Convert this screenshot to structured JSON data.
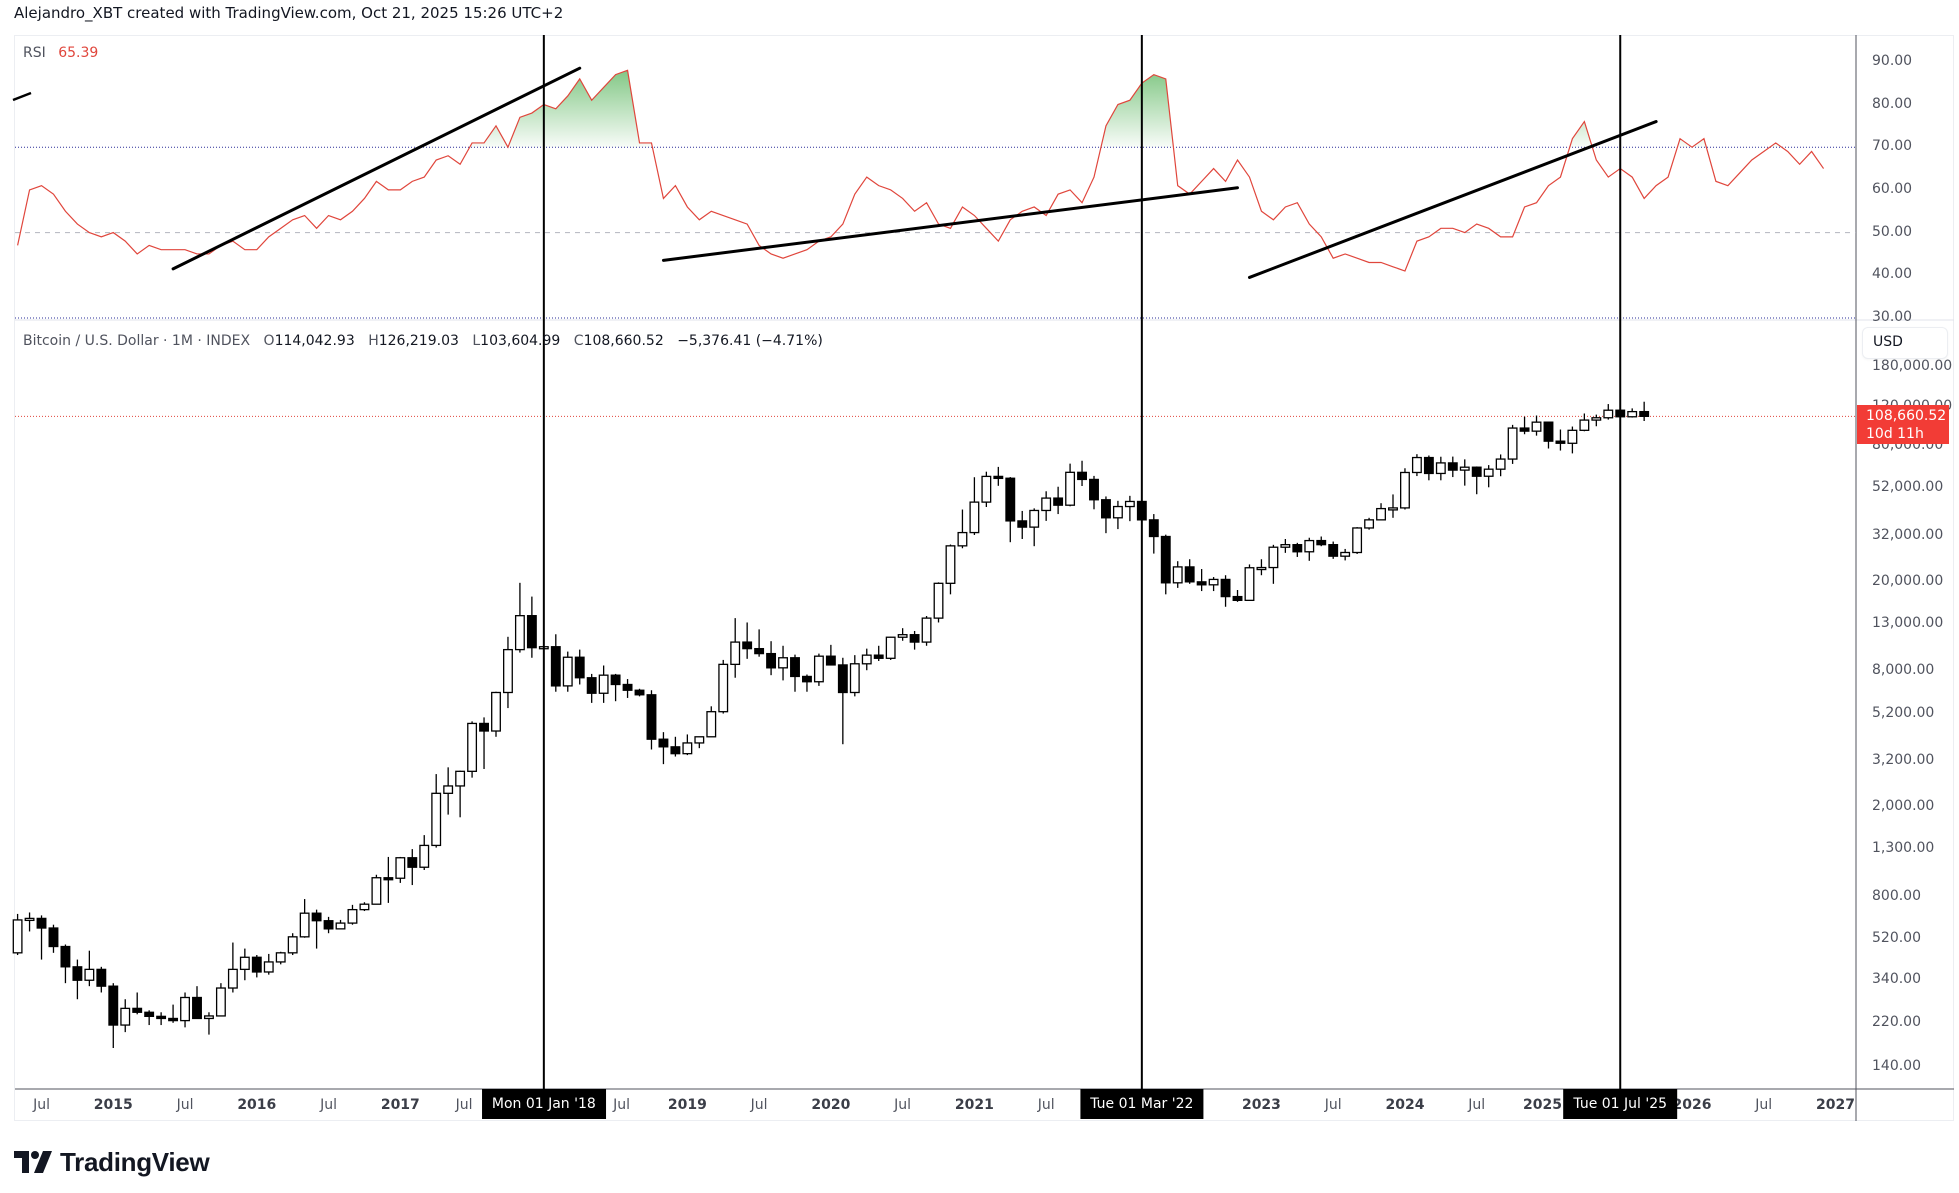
{
  "header": {
    "title": "Alejandro_XBT created with TradingView.com, Oct 21, 2025 15:26 UTC+2"
  },
  "rsi_legend": {
    "name": "RSI",
    "value": "65.39",
    "value_color": "#e0463c"
  },
  "price_legend": {
    "symbol": "Bitcoin / U.S. Dollar · 1M · INDEX",
    "open_label": "O",
    "open": "114,042.93",
    "high_label": "H",
    "high": "126,219.03",
    "low_label": "L",
    "low": "103,604.99",
    "close_label": "C",
    "close": "108,660.52",
    "change": "−5,376.41 (−4.71%)"
  },
  "currency_button": "USD",
  "last_price_tag": {
    "price": "108,660.52",
    "countdown": "10d 11h",
    "color": "#f23c36"
  },
  "rsi_axis": [
    "90.00",
    "80.00",
    "70.00",
    "60.00",
    "50.00",
    "40.00",
    "30.00"
  ],
  "price_axis": [
    "180,000.00",
    "120,000.00",
    "80,000.00",
    "52,000.00",
    "32,000.00",
    "20,000.00",
    "13,000.00",
    "8,000.00",
    "5,200.00",
    "3,200.00",
    "2,000.00",
    "1,300.00",
    "800.00",
    "520.00",
    "340.00",
    "220.00",
    "140.00"
  ],
  "time_axis": [
    {
      "label": "Jul",
      "year": false
    },
    {
      "label": "2015",
      "year": true
    },
    {
      "label": "Jul",
      "year": false
    },
    {
      "label": "2016",
      "year": true
    },
    {
      "label": "Jul",
      "year": false
    },
    {
      "label": "2017",
      "year": true
    },
    {
      "label": "Jul",
      "year": false
    },
    {
      "label": "Jul",
      "year": false
    },
    {
      "label": "2019",
      "year": true
    },
    {
      "label": "Jul",
      "year": false
    },
    {
      "label": "2020",
      "year": true
    },
    {
      "label": "Jul",
      "year": false
    },
    {
      "label": "2021",
      "year": true
    },
    {
      "label": "Jul",
      "year": false
    },
    {
      "label": "2023",
      "year": true
    },
    {
      "label": "Jul",
      "year": false
    },
    {
      "label": "2024",
      "year": true
    },
    {
      "label": "Jul",
      "year": false
    },
    {
      "label": "2025",
      "year": true
    },
    {
      "label": "2026",
      "year": true
    },
    {
      "label": "Jul",
      "year": false
    },
    {
      "label": "2027",
      "year": true
    }
  ],
  "time_markers": [
    "Mon 01 Jan '18",
    "Tue 01 Mar '22",
    "Tue 01 Jul '25"
  ],
  "brand": {
    "name": "TradingView"
  },
  "colors": {
    "rsi_line": "#e0463c",
    "rsi_fill": "#4caf50",
    "overbought_line": "#2a2e9a",
    "midline": "#b2b5be",
    "candle": "#000000",
    "price_line": "#e0463c"
  },
  "chart_data": [
    {
      "type": "line",
      "title": "RSI",
      "current_value": 65.39,
      "ylim": [
        30,
        95
      ],
      "levels": {
        "overbought": 70,
        "middle": 50,
        "oversold": 30
      },
      "x_start": "2014-05",
      "interval": "1M",
      "values": [
        47,
        60,
        61,
        59,
        55,
        52,
        50,
        49,
        50,
        48,
        45,
        47,
        46,
        46,
        46,
        45,
        45,
        47,
        48,
        46,
        46,
        49,
        51,
        53,
        54,
        51,
        54,
        53,
        55,
        58,
        62,
        60,
        60,
        62,
        63,
        67,
        68,
        66,
        71,
        71,
        75,
        70,
        77,
        78,
        80,
        79,
        82,
        86,
        81,
        84,
        87,
        88,
        71,
        71,
        58,
        61,
        56,
        53,
        55,
        54,
        53,
        52,
        47,
        45,
        44,
        45,
        46,
        48,
        49,
        52,
        59,
        63,
        61,
        60,
        58,
        55,
        57,
        52,
        51,
        56,
        54,
        51,
        48,
        53,
        55,
        56,
        54,
        59,
        60,
        57,
        63,
        75,
        80,
        81,
        85,
        87,
        86,
        61,
        59,
        62,
        65,
        62,
        67,
        63,
        55,
        53,
        56,
        57,
        52,
        49,
        44,
        45,
        44,
        43,
        43,
        42,
        41,
        48,
        49,
        51,
        51,
        50,
        52,
        51,
        49,
        49,
        56,
        57,
        61,
        63,
        72,
        76,
        67,
        63,
        65,
        63,
        58,
        61,
        63,
        72,
        70,
        72,
        62,
        61,
        64,
        67,
        69,
        71,
        69,
        66,
        69,
        65
      ],
      "trendlines": [
        {
          "from": [
            "2015-06",
            41.5
          ],
          "to": [
            "2018-04",
            88.5
          ]
        },
        {
          "from": [
            "2018-11",
            43.5
          ],
          "to": [
            "2022-11",
            60.5
          ]
        },
        {
          "from": [
            "2022-12",
            39.5
          ],
          "to": [
            "2025-10",
            76
          ]
        }
      ]
    },
    {
      "type": "candlestick",
      "title": "Bitcoin / U.S. Dollar · 1M · INDEX (log scale)",
      "ylabel": "USD",
      "ylim": [
        120,
        190000
      ],
      "y_scale": "log",
      "x_start": "2014-05",
      "interval": "1M",
      "ohlc": [
        [
          450,
          670,
          440,
          630
        ],
        [
          630,
          680,
          560,
          640
        ],
        [
          640,
          660,
          420,
          580
        ],
        [
          580,
          600,
          450,
          480
        ],
        [
          480,
          490,
          330,
          390
        ],
        [
          390,
          420,
          280,
          340
        ],
        [
          340,
          460,
          320,
          380
        ],
        [
          380,
          390,
          300,
          320
        ],
        [
          320,
          330,
          170,
          215
        ],
        [
          215,
          280,
          200,
          255
        ],
        [
          255,
          300,
          240,
          245
        ],
        [
          245,
          250,
          215,
          235
        ],
        [
          235,
          245,
          215,
          230
        ],
        [
          230,
          265,
          220,
          225
        ],
        [
          225,
          300,
          210,
          285
        ],
        [
          285,
          320,
          260,
          230
        ],
        [
          230,
          245,
          195,
          236
        ],
        [
          236,
          330,
          235,
          314
        ],
        [
          314,
          500,
          300,
          380
        ],
        [
          380,
          470,
          340,
          430
        ],
        [
          430,
          440,
          350,
          370
        ],
        [
          370,
          445,
          360,
          410
        ],
        [
          410,
          455,
          400,
          450
        ],
        [
          450,
          550,
          440,
          530
        ],
        [
          530,
          780,
          525,
          675
        ],
        [
          675,
          700,
          470,
          625
        ],
        [
          625,
          650,
          550,
          575
        ],
        [
          575,
          630,
          590,
          610
        ],
        [
          610,
          735,
          600,
          700
        ],
        [
          700,
          755,
          690,
          740
        ],
        [
          740,
          1000,
          740,
          970
        ],
        [
          970,
          1200,
          750,
          965
        ],
        [
          965,
          1200,
          920,
          1190
        ],
        [
          1190,
          1300,
          900,
          1080
        ],
        [
          1080,
          1500,
          1050,
          1350
        ],
        [
          1350,
          2800,
          1320,
          2300
        ],
        [
          2300,
          3000,
          1850,
          2480
        ],
        [
          2480,
          2900,
          1800,
          2880
        ],
        [
          2880,
          4800,
          2700,
          4700
        ],
        [
          4700,
          5000,
          2950,
          4350
        ],
        [
          4350,
          6500,
          4100,
          6450
        ],
        [
          6450,
          11400,
          5500,
          10000
        ],
        [
          10000,
          19800,
          9700,
          14150
        ],
        [
          14150,
          17200,
          9200,
          10200
        ],
        [
          10200,
          11800,
          5900,
          10300
        ],
        [
          10300,
          11700,
          6500,
          6900
        ],
        [
          6900,
          9800,
          6500,
          9250
        ],
        [
          9250,
          10000,
          7000,
          7500
        ],
        [
          7500,
          7800,
          5800,
          6400
        ],
        [
          6400,
          8500,
          5800,
          7700
        ],
        [
          7700,
          7800,
          5900,
          7000
        ],
        [
          7000,
          7400,
          6100,
          6600
        ],
        [
          6600,
          6700,
          6200,
          6300
        ],
        [
          6300,
          6600,
          3600,
          4000
        ],
        [
          4000,
          4300,
          3100,
          3700
        ],
        [
          3700,
          4100,
          3350,
          3450
        ],
        [
          3450,
          4200,
          3400,
          3850
        ],
        [
          3850,
          4100,
          3650,
          4100
        ],
        [
          4100,
          5600,
          4100,
          5300
        ],
        [
          5300,
          9000,
          5200,
          8600
        ],
        [
          8600,
          13800,
          7500,
          10800
        ],
        [
          10800,
          13200,
          9100,
          10100
        ],
        [
          10100,
          12300,
          9300,
          9600
        ],
        [
          9600,
          10900,
          7700,
          8300
        ],
        [
          8300,
          10400,
          7300,
          9200
        ],
        [
          9200,
          9500,
          6500,
          7600
        ],
        [
          7600,
          7750,
          6500,
          7200
        ],
        [
          7200,
          9600,
          6900,
          9350
        ],
        [
          9350,
          10500,
          8500,
          8550
        ],
        [
          8550,
          9200,
          3800,
          6450
        ],
        [
          6450,
          9450,
          6200,
          8650
        ],
        [
          8650,
          10100,
          8100,
          9450
        ],
        [
          9450,
          10400,
          8900,
          9150
        ],
        [
          9150,
          11400,
          9000,
          11350
        ],
        [
          11350,
          12450,
          10950,
          11650
        ],
        [
          11650,
          12100,
          10000,
          10800
        ],
        [
          10800,
          14100,
          10400,
          13800
        ],
        [
          13800,
          19900,
          13200,
          19700
        ],
        [
          19700,
          29300,
          17600,
          28900
        ],
        [
          28900,
          41900,
          28200,
          33100
        ],
        [
          33100,
          58300,
          32300,
          45200
        ],
        [
          45200,
          61700,
          43000,
          58800
        ],
        [
          58800,
          64800,
          53400,
          57700
        ],
        [
          57700,
          58400,
          30000,
          37300
        ],
        [
          37300,
          41300,
          31000,
          35000
        ],
        [
          35000,
          42400,
          28800,
          41500
        ],
        [
          41500,
          50500,
          37300,
          47100
        ],
        [
          47100,
          52900,
          40000,
          43800
        ],
        [
          43800,
          67000,
          43300,
          61300
        ],
        [
          61300,
          69000,
          53300,
          57000
        ],
        [
          57000,
          59100,
          42000,
          46300
        ],
        [
          46300,
          47900,
          32900,
          38500
        ],
        [
          38500,
          45800,
          34300,
          43200
        ],
        [
          43200,
          48200,
          37200,
          45500
        ],
        [
          45500,
          47400,
          37700,
          37700
        ],
        [
          37700,
          40000,
          26700,
          31800
        ],
        [
          31800,
          32400,
          17600,
          19800
        ],
        [
          19800,
          24700,
          18800,
          23300
        ],
        [
          23300,
          25200,
          19600,
          20000
        ],
        [
          20000,
          22800,
          18200,
          19400
        ],
        [
          19400,
          21000,
          18200,
          20500
        ],
        [
          20500,
          21400,
          15500,
          17200
        ],
        [
          17200,
          18400,
          16300,
          16550
        ],
        [
          16550,
          23900,
          16500,
          23100
        ],
        [
          23100,
          25200,
          21400,
          23150
        ],
        [
          23150,
          29200,
          19600,
          28500
        ],
        [
          28500,
          31000,
          26900,
          29250
        ],
        [
          29250,
          29800,
          25800,
          27200
        ],
        [
          27200,
          31400,
          24800,
          30500
        ],
        [
          30500,
          31800,
          28800,
          29250
        ],
        [
          29250,
          30200,
          25300,
          26000
        ],
        [
          26000,
          28000,
          24900,
          27000
        ],
        [
          27000,
          35000,
          26600,
          34700
        ],
        [
          34700,
          38500,
          34100,
          37700
        ],
        [
          37700,
          44700,
          37600,
          42300
        ],
        [
          42300,
          48900,
          38500,
          42600
        ],
        [
          42600,
          63900,
          41900,
          61200
        ],
        [
          61200,
          73800,
          59000,
          71300
        ],
        [
          71300,
          72800,
          56500,
          60600
        ],
        [
          60600,
          71900,
          56500,
          67500
        ],
        [
          67500,
          72000,
          58400,
          62700
        ],
        [
          62700,
          70000,
          53500,
          64600
        ],
        [
          64600,
          65100,
          49000,
          58900
        ],
        [
          58900,
          66000,
          52600,
          63300
        ],
        [
          63300,
          73600,
          58900,
          70200
        ],
        [
          70200,
          99600,
          66800,
          96400
        ],
        [
          96400,
          108300,
          90500,
          93400
        ],
        [
          93400,
          109600,
          89200,
          102400
        ],
        [
          102400,
          102500,
          78200,
          84300
        ],
        [
          84300,
          95000,
          76600,
          82500
        ],
        [
          82500,
          97900,
          74400,
          94200
        ],
        [
          94200,
          111900,
          93300,
          104600
        ],
        [
          104600,
          110600,
          98200,
          107100
        ],
        [
          107100,
          123200,
          105100,
          115700
        ],
        [
          115700,
          124500,
          107400,
          108200
        ],
        [
          108200,
          117900,
          107300,
          114040
        ],
        [
          114040,
          126200,
          103600,
          108660
        ]
      ],
      "last_price": 108660.52,
      "vertical_markers": [
        "2018-01",
        "2022-03",
        "2025-07"
      ]
    }
  ]
}
